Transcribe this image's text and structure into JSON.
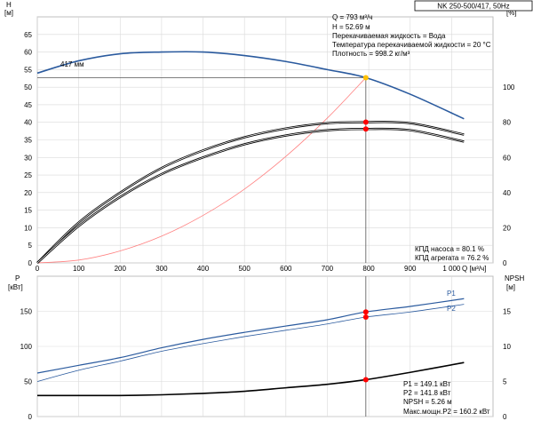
{
  "header": {
    "title": "NK 250-500/417, 50Hz"
  },
  "axes": {
    "h_label": "H",
    "h_unit": "[м]",
    "eta_label": "eta",
    "eta_unit": "[%]",
    "p_label": "P",
    "p_unit": "[кВт]",
    "npsh_label": "NPSH",
    "npsh_unit": "[м]",
    "q_label": "Q [м³/ч]"
  },
  "info_top": [
    "Q = 793 м³/ч",
    "H = 52.69 м",
    "Перекачиваемая жидкость = Вода",
    "Температура перекачиваемой жидкости = 20 °C",
    "Плотность = 998.2 кг/м³"
  ],
  "info_eff": [
    "КПД насоса = 80.1 %",
    "КПД агрегата = 76.2 %"
  ],
  "info_power": [
    "P1 = 149.1 кВт",
    "P2 = 141.8 кВт",
    "NPSH = 5.26 м",
    "Макс.мощн.P2 = 160.2 кВт"
  ],
  "labels": {
    "impeller": "417 мм",
    "p1": "P1",
    "p2": "P2"
  },
  "colors": {
    "head_curve": "#2a5a9e",
    "power_curve": "#2a5a9e",
    "efficiency_curve": "#000000",
    "npsh_curve": "#000000",
    "system_curve": "#ff8080",
    "duty_point": "#ff0000",
    "duty_point_head": "#ffc000",
    "grid": "#d9d9d9"
  },
  "chart_data": [
    {
      "type": "line",
      "title": "",
      "xlabel": "Q [м³/ч]",
      "ylabel": "H [м]",
      "xlim": [
        0,
        1100
      ],
      "ylim": [
        0,
        70
      ],
      "x_ticks": [
        0,
        100,
        200,
        300,
        400,
        500,
        600,
        700,
        800,
        900,
        1000
      ],
      "x_tick_labels": [
        "0",
        "100",
        "200",
        "300",
        "400",
        "500",
        "600",
        "700",
        "800",
        "900",
        "1 000"
      ],
      "y_ticks": [
        0,
        5,
        10,
        15,
        20,
        25,
        30,
        35,
        40,
        45,
        50,
        55,
        60,
        65
      ],
      "grid": true,
      "series": [
        {
          "name": "417 мм",
          "x": [
            0,
            100,
            200,
            300,
            400,
            500,
            600,
            700,
            793,
            900,
            1030
          ],
          "y": [
            54.0,
            57.5,
            59.5,
            60.0,
            60.0,
            59.0,
            57.3,
            55.0,
            52.7,
            48.0,
            41.0
          ]
        },
        {
          "name": "",
          "x": [
            0,
            100,
            200,
            300,
            400,
            500,
            600,
            700,
            793
          ],
          "y": [
            0,
            0.8,
            3.4,
            7.6,
            13.5,
            21.0,
            30.3,
            41.2,
            52.7
          ]
        }
      ],
      "duty_point": {
        "x": 793,
        "y": 52.69
      }
    },
    {
      "type": "line",
      "title": "",
      "xlabel": "",
      "ylabel": "eta [%]",
      "xlim": [
        0,
        1100
      ],
      "ylim": [
        0,
        140
      ],
      "y_ticks": [
        0,
        20,
        40,
        60,
        80,
        100
      ],
      "grid": true,
      "series": [
        {
          "name": "",
          "x": [
            0,
            100,
            200,
            300,
            400,
            500,
            600,
            700,
            793,
            900,
            1030
          ],
          "y": [
            0,
            23,
            40,
            54,
            64,
            71.5,
            76.5,
            79.5,
            80.1,
            79.5,
            73.0
          ]
        },
        {
          "name": "",
          "x": [
            0,
            100,
            200,
            300,
            400,
            500,
            600,
            700,
            793,
            900,
            1030
          ],
          "y": [
            0,
            21,
            37.5,
            50.5,
            60,
            67.5,
            72.5,
            75.5,
            76.2,
            75.5,
            69.0
          ]
        }
      ],
      "duty_points": [
        {
          "x": 793,
          "y": 80.1
        },
        {
          "x": 793,
          "y": 76.2
        }
      ]
    },
    {
      "type": "line",
      "title": "",
      "xlabel": "",
      "ylabel": "P [кВт]",
      "xlim": [
        0,
        1100
      ],
      "ylim": [
        0,
        200
      ],
      "x_ticks": [
        0,
        100,
        200,
        300,
        400,
        500,
        600,
        700,
        800,
        900,
        1000
      ],
      "y_ticks": [
        0,
        50,
        100,
        150
      ],
      "grid": true,
      "series": [
        {
          "name": "P1",
          "x": [
            0,
            100,
            200,
            300,
            400,
            500,
            600,
            700,
            793,
            900,
            1030
          ],
          "y": [
            62,
            73,
            84,
            98,
            110,
            120,
            129,
            138,
            149.1,
            157,
            168
          ]
        },
        {
          "name": "P2",
          "x": [
            0,
            100,
            200,
            300,
            400,
            500,
            600,
            700,
            793,
            900,
            1030
          ],
          "y": [
            50,
            66,
            79,
            93,
            104,
            114,
            123,
            132,
            141.8,
            149,
            160
          ]
        }
      ],
      "duty_points": [
        {
          "x": 793,
          "y": 149.1
        },
        {
          "x": 793,
          "y": 141.8
        }
      ]
    },
    {
      "type": "line",
      "title": "",
      "xlabel": "",
      "ylabel": "NPSH [м]",
      "xlim": [
        0,
        1100
      ],
      "ylim": [
        0,
        20
      ],
      "y_ticks": [
        0,
        5,
        10,
        15
      ],
      "grid": false,
      "series": [
        {
          "name": "",
          "x": [
            0,
            100,
            200,
            300,
            400,
            500,
            600,
            700,
            793,
            900,
            1030
          ],
          "y": [
            3.0,
            3.0,
            3.0,
            3.1,
            3.3,
            3.6,
            4.1,
            4.6,
            5.26,
            6.3,
            7.7
          ]
        }
      ],
      "duty_point": {
        "x": 793,
        "y": 5.26
      }
    }
  ]
}
